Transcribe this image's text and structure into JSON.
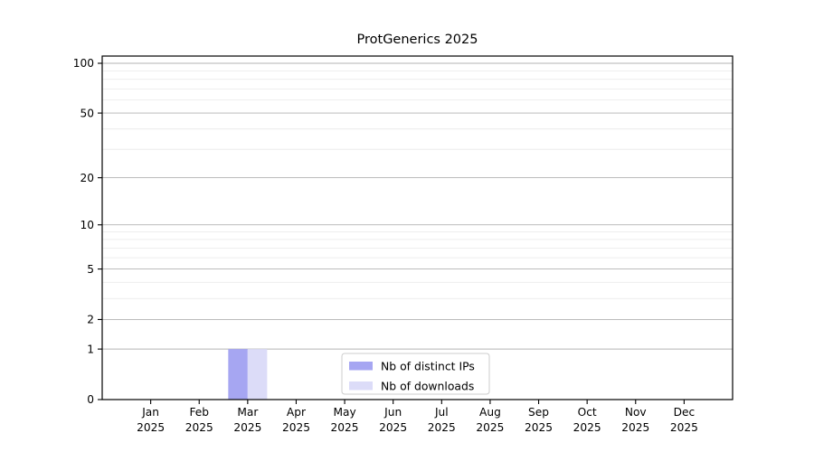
{
  "chart_data": {
    "type": "bar",
    "title": "ProtGenerics 2025",
    "categories": [
      "Jan",
      "Feb",
      "Mar",
      "Apr",
      "May",
      "Jun",
      "Jul",
      "Aug",
      "Sep",
      "Oct",
      "Nov",
      "Dec"
    ],
    "year": "2025",
    "series": [
      {
        "name": "Nb of distinct IPs",
        "color": "#a6a6f2",
        "values": [
          0,
          0,
          1,
          0,
          0,
          0,
          0,
          0,
          0,
          0,
          0,
          0
        ]
      },
      {
        "name": "Nb of downloads",
        "color": "#dcdcf8",
        "values": [
          0,
          0,
          1,
          0,
          0,
          0,
          0,
          0,
          0,
          0,
          0,
          0
        ]
      }
    ],
    "xlabel": "",
    "ylabel": "",
    "yscale": "log1p",
    "yticks": [
      0,
      1,
      2,
      5,
      10,
      20,
      50,
      100
    ],
    "minor_yticks": [
      3,
      4,
      6,
      7,
      8,
      9,
      30,
      40,
      60,
      70,
      80,
      90
    ],
    "ylim": [
      0,
      110
    ],
    "grid": true,
    "legend_entries": [
      "Nb of distinct IPs",
      "Nb of downloads"
    ],
    "legend_position": "bottom-center"
  },
  "style": {
    "background": "#ffffff",
    "axis_color": "#000000",
    "text_color": "#000000",
    "major_grid_color": "#b3b3b3",
    "minor_grid_color": "#e8e8e8",
    "legend_border_color": "#cccccc",
    "legend_background": "#ffffff"
  }
}
